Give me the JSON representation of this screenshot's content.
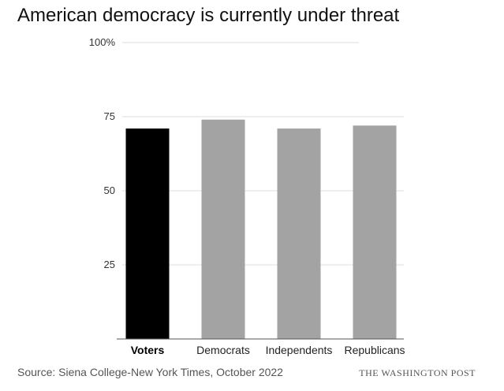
{
  "header": {
    "title": "American democracy is currently under threat"
  },
  "footer": {
    "source": "Source: Siena College-New York Times, October 2022",
    "brand": "THE WASHINGTON POST"
  },
  "colors": {
    "highlight_bar": "#000000",
    "bar": "#a3a3a3",
    "grid": "#dcdcdc",
    "axis": "#555555"
  },
  "chart_data": {
    "type": "bar",
    "title": "American democracy is currently under threat",
    "categories": [
      "Voters",
      "Democrats",
      "Independents",
      "Republicans"
    ],
    "values": [
      71,
      74,
      71,
      72
    ],
    "highlighted_category": "Voters",
    "unit": "%",
    "ylim": [
      0,
      100
    ],
    "yticks": [
      25,
      50,
      75,
      100
    ],
    "ytick_labels": [
      "25",
      "50",
      "75",
      "100%"
    ],
    "xlabel": "",
    "ylabel": "",
    "grid": true
  }
}
